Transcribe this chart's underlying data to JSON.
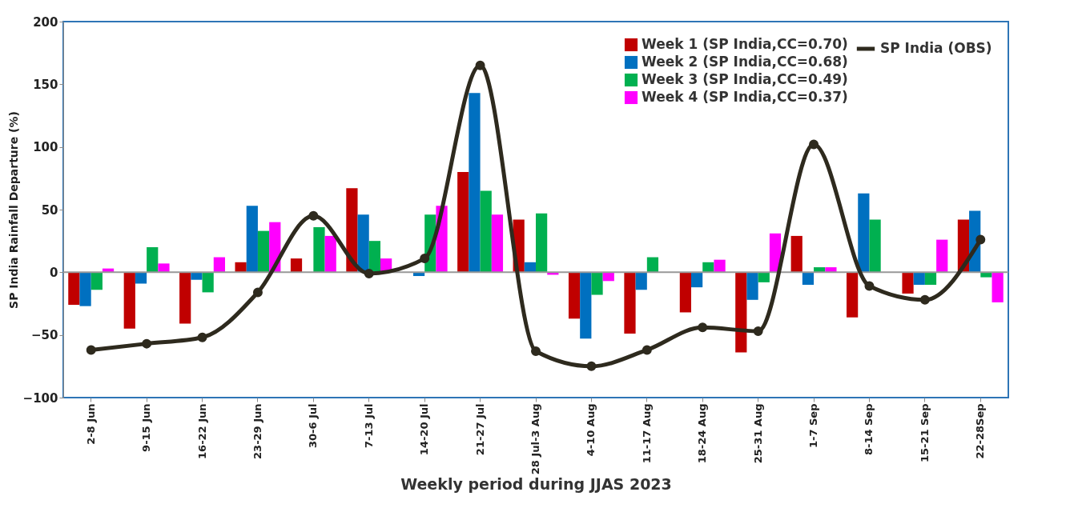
{
  "chart_data": {
    "type": "bar",
    "xlabel": "Weekly period during JJAS 2023",
    "ylabel": "SP India Rainfall Departure (%)",
    "categories": [
      "2-8 Jun",
      "9-15 Jun",
      "16-22 Jun",
      "23-29 Jun",
      "30-6 Jul",
      "7-13 Jul",
      "14-20 Jul",
      "21-27 Jul",
      "28 Jul-3 Aug",
      "4-10 Aug",
      "11-17 Aug",
      "18-24 Aug",
      "25-31 Aug",
      "1-7 Sep",
      "8-14 Sep",
      "15-21 Sep",
      "22-28Sep"
    ],
    "series": [
      {
        "name": "Week 1 (SP India,CC=0.70)",
        "color": "#c00000",
        "values": [
          -26,
          -45,
          -41,
          8,
          11,
          67,
          0,
          80,
          42,
          -37,
          -49,
          -32,
          -64,
          29,
          -36,
          -17,
          42
        ]
      },
      {
        "name": "Week 2 (SP India,CC=0.68)",
        "color": "#0070c0",
        "values": [
          -27,
          -9,
          -6,
          53,
          null,
          46,
          -3,
          143,
          8,
          -53,
          -14,
          -12,
          -22,
          -10,
          63,
          -10,
          49
        ]
      },
      {
        "name": "Week 3 (SP India,CC=0.49)",
        "color": "#00b050",
        "values": [
          -14,
          20,
          -16,
          33,
          36,
          25,
          46,
          65,
          47,
          -18,
          12,
          8,
          -8,
          4,
          42,
          -10,
          -4
        ]
      },
      {
        "name": "Week 4 (SP India,CC=0.37)",
        "color": "#ff00ff",
        "values": [
          3,
          7,
          12,
          40,
          29,
          11,
          53,
          46,
          -2,
          -7,
          0,
          10,
          31,
          4,
          null,
          26,
          -24
        ]
      },
      {
        "name": "SP India (OBS)",
        "type": "line",
        "color": "#2e2a1e",
        "marker": "circle",
        "values": [
          -62,
          -57,
          -52,
          -16,
          45,
          -1,
          11,
          165,
          -63,
          -75,
          -62,
          -44,
          -47,
          102,
          -11,
          -22,
          26
        ]
      }
    ],
    "ylim": [
      -100,
      200
    ],
    "yticks": [
      -100,
      -50,
      0,
      50,
      100,
      150,
      200
    ],
    "ref_lines": [
      {
        "axis": "y",
        "value": 0
      }
    ],
    "grid": false,
    "legend": "top right"
  }
}
